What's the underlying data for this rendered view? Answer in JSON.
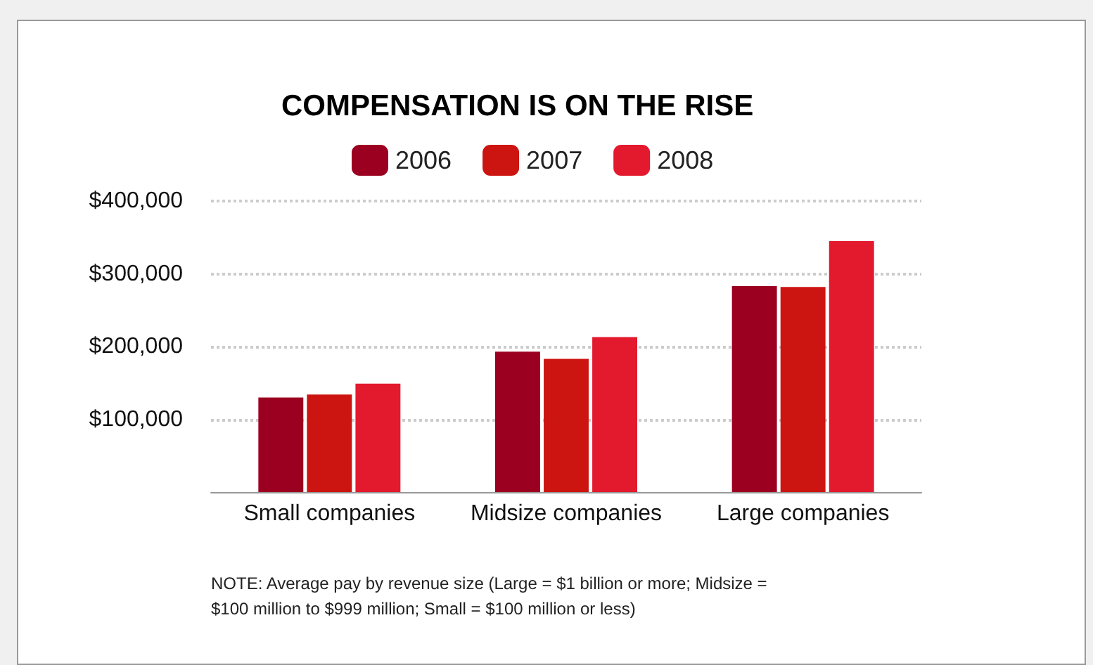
{
  "chart_data": {
    "type": "bar",
    "title": "COMPENSATION IS ON THE RISE",
    "categories": [
      "Small companies",
      "Midsize companies",
      "Large companies"
    ],
    "series": [
      {
        "name": "2006",
        "color": "#9b0020",
        "values": [
          130000,
          193000,
          283000
        ]
      },
      {
        "name": "2007",
        "color": "#cc1410",
        "values": [
          134000,
          183000,
          282000
        ]
      },
      {
        "name": "2008",
        "color": "#e3192e",
        "values": [
          149000,
          213000,
          345000
        ]
      }
    ],
    "ylim": [
      0,
      400000
    ],
    "yticks": [
      {
        "value": 100000,
        "label": "$100,000"
      },
      {
        "value": 200000,
        "label": "$200,000"
      },
      {
        "value": 300000,
        "label": "$300,000"
      },
      {
        "value": 400000,
        "label": "$400,000"
      }
    ],
    "grid": "y",
    "legend": "top",
    "annotations": [
      "NOTE: Average pay by revenue size (Large = $1 billion or more; Midsize = $100 million to $999 million; Small = $100 million or less)"
    ]
  }
}
